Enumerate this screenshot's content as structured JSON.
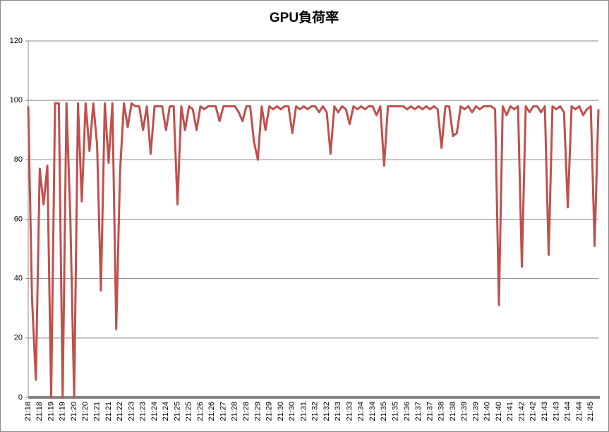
{
  "chart_data": {
    "type": "line",
    "title": "GPU負荷率",
    "categories": [
      "21:18",
      null,
      null,
      "21:18",
      null,
      null,
      "21:19",
      null,
      null,
      "21:19",
      null,
      null,
      "21:20",
      null,
      null,
      "21:20",
      null,
      null,
      "21:21",
      null,
      null,
      "21:21",
      null,
      null,
      "21:22",
      null,
      null,
      "21:23",
      null,
      null,
      "21:23",
      null,
      null,
      "21:24",
      null,
      null,
      "21:24",
      null,
      null,
      "21:25",
      null,
      null,
      "21:25",
      null,
      null,
      "21:26",
      null,
      null,
      "21:26",
      null,
      null,
      "21:27",
      null,
      null,
      "21:28",
      null,
      null,
      "21:28",
      null,
      null,
      "21:29",
      null,
      null,
      "21:29",
      null,
      null,
      "21:30",
      null,
      null,
      "21:30",
      null,
      null,
      "21:31",
      null,
      null,
      "21:32",
      null,
      null,
      "21:32",
      null,
      null,
      "21:33",
      null,
      null,
      "21:33",
      null,
      null,
      "21:34",
      null,
      null,
      "21:34",
      null,
      null,
      "21:35",
      null,
      null,
      "21:35",
      null,
      null,
      "21:36",
      null,
      null,
      "21:37",
      null,
      null,
      "21:37",
      null,
      null,
      "21:38",
      null,
      null,
      "21:38",
      null,
      null,
      "21:39",
      null,
      null,
      "21:39",
      null,
      null,
      "21:40",
      null,
      null,
      "21:40",
      null,
      null,
      "21:41",
      null,
      null,
      "21:42",
      null,
      null,
      "21:42",
      null,
      null,
      "21:43",
      null,
      null,
      "21:43",
      null,
      null,
      "21:44",
      null,
      null,
      "21:44",
      null,
      null,
      "21:45",
      null,
      null
    ],
    "values": [
      98,
      33,
      6,
      77,
      65,
      78,
      0,
      99,
      99,
      0,
      99,
      60,
      0,
      99,
      66,
      99,
      83,
      99,
      85,
      36,
      99,
      79,
      99,
      23,
      76,
      99,
      91,
      99,
      98,
      98,
      90,
      98,
      82,
      98,
      98,
      98,
      90,
      98,
      98,
      65,
      98,
      90,
      98,
      97,
      90,
      98,
      97,
      98,
      98,
      98,
      93,
      98,
      98,
      98,
      98,
      96,
      93,
      98,
      98,
      86,
      80,
      98,
      90,
      98,
      97,
      98,
      97,
      98,
      98,
      89,
      98,
      97,
      98,
      97,
      98,
      98,
      96,
      98,
      96,
      82,
      98,
      96,
      98,
      97,
      92,
      98,
      97,
      98,
      97,
      98,
      98,
      95,
      98,
      78,
      98,
      98,
      98,
      98,
      98,
      97,
      98,
      97,
      98,
      97,
      98,
      97,
      98,
      97,
      84,
      98,
      98,
      88,
      89,
      98,
      97,
      98,
      96,
      98,
      97,
      98,
      98,
      98,
      97,
      31,
      98,
      95,
      98,
      97,
      98,
      44,
      98,
      96,
      98,
      98,
      96,
      98,
      48,
      98,
      97,
      98,
      96,
      64,
      98,
      97,
      98,
      95,
      97,
      98,
      51,
      97
    ],
    "color": "#c0504d",
    "ylim": [
      0,
      120
    ],
    "yticks": [
      0,
      20,
      40,
      60,
      80,
      100,
      120
    ],
    "grid": true
  }
}
